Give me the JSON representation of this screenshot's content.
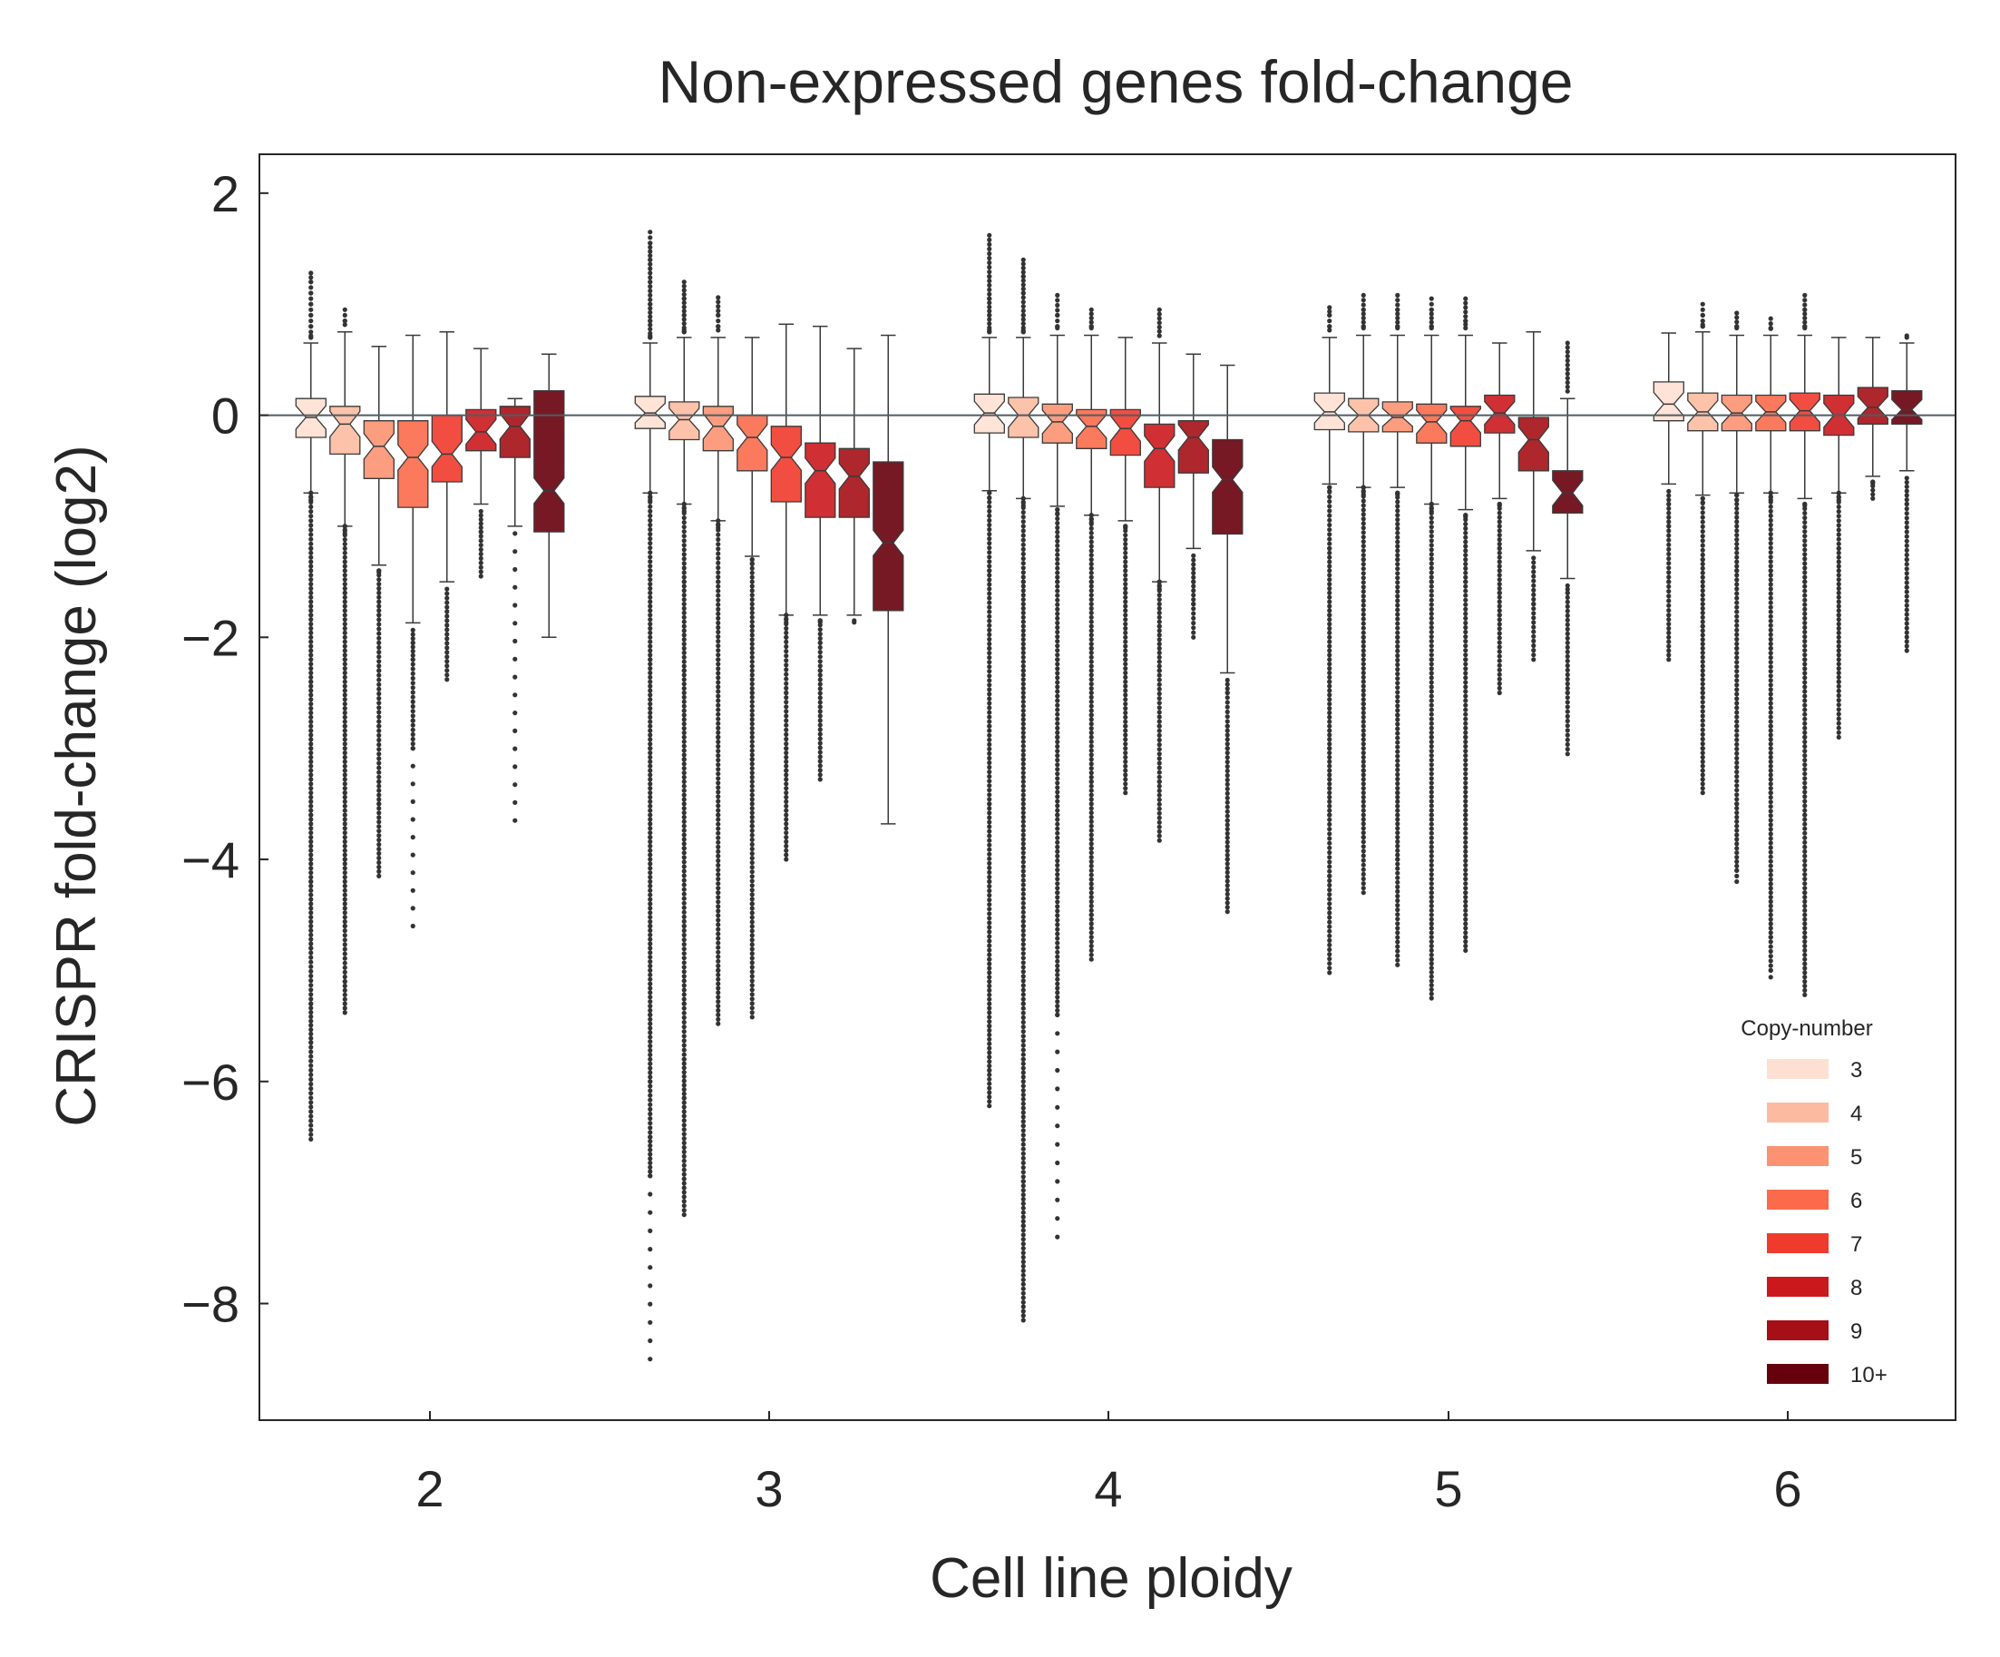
{
  "chart_data": {
    "type": "box",
    "title": "Non-expressed genes fold-change",
    "xlabel": "Cell line ploidy",
    "ylabel": "CRISPR fold-change (log2)",
    "ylim": [
      -9.05,
      2.35
    ],
    "yticks": [
      2,
      0,
      -2,
      -4,
      -6,
      -8
    ],
    "ytick_labels": [
      "2",
      "0",
      "−2",
      "−4",
      "−6",
      "−8"
    ],
    "categories": [
      "2",
      "3",
      "4",
      "5",
      "6"
    ],
    "reference_line": 0,
    "legend": {
      "title": "Copy-number",
      "position": "bottom-right",
      "entries": [
        "3",
        "4",
        "5",
        "6",
        "7",
        "8",
        "9",
        "10+"
      ]
    },
    "series": [
      {
        "name": "3",
        "color": "#fee0d2",
        "boxes": [
          {
            "ploidy": "2",
            "q1": -0.2,
            "median": -0.02,
            "q3": 0.15,
            "whisker_low": -0.7,
            "whisker_high": 0.65,
            "outliers_high": [
              0.7,
              0.8,
              0.9,
              1.0,
              1.1,
              1.2,
              1.28
            ],
            "outliers_low": [
              -0.7,
              -1.2,
              -1.8,
              -2.4,
              -3.0,
              -3.6,
              -4.2,
              -4.8,
              -5.3,
              -5.65,
              -6.52
            ]
          },
          {
            "ploidy": "3",
            "q1": -0.12,
            "median": 0.02,
            "q3": 0.17,
            "whisker_low": -0.7,
            "whisker_high": 0.65,
            "outliers_high": [
              0.7,
              0.85,
              1.0,
              1.2,
              1.4,
              1.55,
              1.65
            ],
            "outliers_low": [
              -0.7,
              -1.4,
              -2.2,
              -3.0,
              -3.8,
              -4.6,
              -5.4,
              -6.0,
              -6.5,
              -6.85,
              -8.5
            ]
          },
          {
            "ploidy": "4",
            "q1": -0.16,
            "median": 0.02,
            "q3": 0.19,
            "whisker_low": -0.68,
            "whisker_high": 0.7,
            "outliers_high": [
              0.75,
              0.9,
              1.05,
              1.25,
              1.62
            ],
            "outliers_low": [
              -0.7,
              -1.4,
              -2.1,
              -2.8,
              -3.5,
              -4.2,
              -4.9,
              -5.5,
              -5.9,
              -6.22
            ]
          },
          {
            "ploidy": "5",
            "q1": -0.13,
            "median": 0.03,
            "q3": 0.2,
            "whisker_low": -0.62,
            "whisker_high": 0.7,
            "outliers_high": [
              0.8,
              0.9,
              0.97
            ],
            "outliers_low": [
              -0.65,
              -1.2,
              -1.8,
              -2.4,
              -3.0,
              -3.6,
              -4.15,
              -5.02
            ]
          },
          {
            "ploidy": "6",
            "q1": -0.05,
            "median": 0.1,
            "q3": 0.3,
            "whisker_low": -0.62,
            "whisker_high": 0.74,
            "outliers_high": [],
            "outliers_low": [
              -0.8,
              -1.0,
              -1.5,
              -1.8,
              -2.2
            ]
          }
        ]
      },
      {
        "name": "4",
        "color": "#fcbba1",
        "boxes": [
          {
            "ploidy": "2",
            "q1": -0.35,
            "median": -0.08,
            "q3": 0.08,
            "whisker_low": -1.0,
            "whisker_high": 0.75,
            "outliers_high": [
              0.85,
              0.95
            ],
            "outliers_low": [
              -1.0,
              -1.6,
              -2.2,
              -2.8,
              -3.4,
              -4.0,
              -4.6,
              -5.1,
              -5.38
            ]
          },
          {
            "ploidy": "3",
            "q1": -0.22,
            "median": -0.04,
            "q3": 0.12,
            "whisker_low": -0.8,
            "whisker_high": 0.7,
            "outliers_high": [
              0.75,
              0.9,
              1.05,
              1.2
            ],
            "outliers_low": [
              -0.8,
              -1.5,
              -2.3,
              -3.1,
              -3.9,
              -4.6,
              -5.3,
              -5.8,
              -6.15,
              -7.2
            ]
          },
          {
            "ploidy": "4",
            "q1": -0.2,
            "median": 0.0,
            "q3": 0.16,
            "whisker_low": -0.75,
            "whisker_high": 0.7,
            "outliers_high": [
              0.75,
              0.9,
              1.1,
              1.25,
              1.4
            ],
            "outliers_low": [
              -0.75,
              -1.5,
              -2.3,
              -3.1,
              -3.9,
              -4.6,
              -5.3,
              -5.8,
              -6.4,
              -6.9,
              -7.3,
              -8.15
            ]
          },
          {
            "ploidy": "5",
            "q1": -0.15,
            "median": 0.0,
            "q3": 0.15,
            "whisker_low": -0.65,
            "whisker_high": 0.72,
            "outliers_high": [
              0.8,
              0.95,
              1.08
            ],
            "outliers_low": [
              -0.65,
              -1.3,
              -2.0,
              -2.6,
              -3.2,
              -3.8,
              -4.3
            ]
          },
          {
            "ploidy": "6",
            "q1": -0.14,
            "median": 0.03,
            "q3": 0.2,
            "whisker_low": -0.72,
            "whisker_high": 0.75,
            "outliers_high": [
              0.8,
              0.9,
              1.0
            ],
            "outliers_low": [
              -0.75,
              -1.3,
              -1.9,
              -2.5,
              -3.0,
              -3.4
            ]
          }
        ]
      },
      {
        "name": "5",
        "color": "#fc9272",
        "boxes": [
          {
            "ploidy": "2",
            "q1": -0.57,
            "median": -0.28,
            "q3": -0.05,
            "whisker_low": -1.35,
            "whisker_high": 0.62,
            "outliers_high": [],
            "outliers_low": [
              -1.4,
              -1.8,
              -2.3,
              -2.8,
              -3.3,
              -3.5,
              -4.15
            ]
          },
          {
            "ploidy": "3",
            "q1": -0.32,
            "median": -0.1,
            "q3": 0.08,
            "whisker_low": -0.95,
            "whisker_high": 0.7,
            "outliers_high": [
              0.8,
              0.9,
              1.06
            ],
            "outliers_low": [
              -0.95,
              -1.5,
              -2.2,
              -2.9,
              -3.6,
              -4.3,
              -5.0,
              -5.48
            ]
          },
          {
            "ploidy": "4",
            "q1": -0.25,
            "median": -0.06,
            "q3": 0.1,
            "whisker_low": -0.82,
            "whisker_high": 0.72,
            "outliers_high": [
              0.8,
              0.9,
              1.08
            ],
            "outliers_low": [
              -0.85,
              -1.5,
              -2.2,
              -2.9,
              -3.6,
              -4.3,
              -5.0,
              -5.4,
              -7.4
            ]
          },
          {
            "ploidy": "5",
            "q1": -0.15,
            "median": -0.02,
            "q3": 0.12,
            "whisker_low": -0.65,
            "whisker_high": 0.72,
            "outliers_high": [
              0.8,
              0.95,
              1.08
            ],
            "outliers_low": [
              -0.7,
              -1.3,
              -2.0,
              -2.7,
              -3.4,
              -4.0,
              -4.95
            ]
          },
          {
            "ploidy": "6",
            "q1": -0.14,
            "median": 0.02,
            "q3": 0.18,
            "whisker_low": -0.7,
            "whisker_high": 0.72,
            "outliers_high": [
              0.8,
              0.92
            ],
            "outliers_low": [
              -0.72,
              -1.4,
              -2.1,
              -2.8,
              -3.5,
              -4.1,
              -4.2
            ]
          }
        ]
      },
      {
        "name": "6",
        "color": "#fb6a4a",
        "boxes": [
          {
            "ploidy": "2",
            "q1": -0.83,
            "median": -0.38,
            "q3": -0.05,
            "whisker_low": -1.87,
            "whisker_high": 0.72,
            "outliers_high": [],
            "outliers_low": [
              -2.05,
              -2.2,
              -2.75,
              -3.0,
              -4.6
            ]
          },
          {
            "ploidy": "3",
            "q1": -0.5,
            "median": -0.2,
            "q3": 0.0,
            "whisker_low": -1.27,
            "whisker_high": 0.7,
            "outliers_high": [],
            "outliers_low": [
              -1.3,
              -1.9,
              -2.5,
              -3.1,
              -3.7,
              -4.4,
              -5.42
            ]
          },
          {
            "ploidy": "4",
            "q1": -0.3,
            "median": -0.1,
            "q3": 0.05,
            "whisker_low": -0.9,
            "whisker_high": 0.72,
            "outliers_high": [
              0.8,
              0.95
            ],
            "outliers_low": [
              -0.9,
              -1.5,
              -2.1,
              -2.7,
              -3.3,
              -3.9,
              -4.5,
              -4.9
            ]
          },
          {
            "ploidy": "5",
            "q1": -0.25,
            "median": -0.06,
            "q3": 0.1,
            "whisker_low": -0.8,
            "whisker_high": 0.72,
            "outliers_high": [
              0.8,
              0.95,
              1.05
            ],
            "outliers_low": [
              -0.8,
              -1.5,
              -2.2,
              -2.9,
              -3.6,
              -4.3,
              -4.9,
              -5.25
            ]
          },
          {
            "ploidy": "6",
            "q1": -0.14,
            "median": 0.03,
            "q3": 0.18,
            "whisker_low": -0.7,
            "whisker_high": 0.72,
            "outliers_high": [
              0.78,
              0.87
            ],
            "outliers_low": [
              -0.7,
              -1.4,
              -2.1,
              -2.8,
              -3.4,
              -4.1,
              -4.7,
              -5.0,
              -5.06
            ]
          }
        ]
      },
      {
        "name": "7",
        "color": "#ef3b2c",
        "boxes": [
          {
            "ploidy": "2",
            "q1": -0.6,
            "median": -0.35,
            "q3": 0.0,
            "whisker_low": -1.5,
            "whisker_high": 0.75,
            "outliers_high": [],
            "outliers_low": [
              -2.38
            ]
          },
          {
            "ploidy": "3",
            "q1": -0.78,
            "median": -0.38,
            "q3": -0.1,
            "whisker_low": -1.8,
            "whisker_high": 0.82,
            "outliers_high": [],
            "outliers_low": [
              -1.8,
              -2.0,
              -2.5,
              -3.0,
              -3.2,
              -4.0
            ]
          },
          {
            "ploidy": "4",
            "q1": -0.36,
            "median": -0.12,
            "q3": 0.05,
            "whisker_low": -0.95,
            "whisker_high": 0.7,
            "outliers_high": [],
            "outliers_low": [
              -1.0,
              -1.6,
              -2.2,
              -2.8,
              -3.4
            ]
          },
          {
            "ploidy": "5",
            "q1": -0.28,
            "median": -0.05,
            "q3": 0.08,
            "whisker_low": -0.85,
            "whisker_high": 0.72,
            "outliers_high": [
              0.85,
              1.05
            ],
            "outliers_low": [
              -0.9,
              -1.5,
              -2.2,
              -2.9,
              -3.6,
              -4.3,
              -4.7,
              -4.82
            ]
          },
          {
            "ploidy": "6",
            "q1": -0.14,
            "median": 0.04,
            "q3": 0.2,
            "whisker_low": -0.75,
            "whisker_high": 0.72,
            "outliers_high": [
              0.8,
              0.95,
              1.08
            ],
            "outliers_low": [
              -0.8,
              -1.5,
              -2.2,
              -2.9,
              -3.6,
              -4.3,
              -4.7,
              -5.22
            ]
          }
        ]
      },
      {
        "name": "8",
        "color": "#cb181d",
        "boxes": [
          {
            "ploidy": "2",
            "q1": -0.32,
            "median": -0.15,
            "q3": 0.05,
            "whisker_low": -0.8,
            "whisker_high": 0.6,
            "outliers_high": [],
            "outliers_low": [
              -1.05,
              -1.45
            ]
          },
          {
            "ploidy": "3",
            "q1": -0.92,
            "median": -0.5,
            "q3": -0.25,
            "whisker_low": -1.8,
            "whisker_high": 0.8,
            "outliers_high": [],
            "outliers_low": [
              -1.85,
              -2.05,
              -2.3,
              -3.28
            ]
          },
          {
            "ploidy": "4",
            "q1": -0.65,
            "median": -0.3,
            "q3": -0.08,
            "whisker_low": -1.5,
            "whisker_high": 0.65,
            "outliers_high": [
              0.95
            ],
            "outliers_low": [
              -1.5,
              -1.9,
              -2.3,
              -2.8,
              -3.3,
              -3.83
            ]
          },
          {
            "ploidy": "5",
            "q1": -0.16,
            "median": 0.02,
            "q3": 0.18,
            "whisker_low": -0.75,
            "whisker_high": 0.65,
            "outliers_high": [],
            "outliers_low": [
              -0.8,
              -1.2,
              -1.6,
              -1.8,
              -2.5
            ]
          },
          {
            "ploidy": "6",
            "q1": -0.18,
            "median": 0.0,
            "q3": 0.18,
            "whisker_low": -0.7,
            "whisker_high": 0.7,
            "outliers_high": [],
            "outliers_low": [
              -0.7,
              -1.2,
              -1.8,
              -2.4,
              -2.9
            ]
          }
        ]
      },
      {
        "name": "9",
        "color": "#a50f15",
        "boxes": [
          {
            "ploidy": "2",
            "q1": -0.38,
            "median": -0.1,
            "q3": 0.08,
            "whisker_low": -1.0,
            "whisker_high": 0.15,
            "outliers_high": [],
            "outliers_low": [
              -3.65
            ]
          },
          {
            "ploidy": "3",
            "q1": -0.92,
            "median": -0.55,
            "q3": -0.3,
            "whisker_low": -1.8,
            "whisker_high": 0.6,
            "outliers_high": [],
            "outliers_low": [
              -1.85
            ]
          },
          {
            "ploidy": "4",
            "q1": -0.52,
            "median": -0.2,
            "q3": -0.05,
            "whisker_low": -1.2,
            "whisker_high": 0.55,
            "outliers_high": [],
            "outliers_low": [
              -1.5,
              -1.7,
              -2.0
            ]
          },
          {
            "ploidy": "5",
            "q1": -0.5,
            "median": -0.22,
            "q3": -0.02,
            "whisker_low": -1.22,
            "whisker_high": 0.75,
            "outliers_high": [],
            "outliers_low": [
              -1.7,
              -2.2
            ]
          },
          {
            "ploidy": "6",
            "q1": -0.08,
            "median": 0.07,
            "q3": 0.25,
            "whisker_low": -0.55,
            "whisker_high": 0.7,
            "outliers_high": [],
            "outliers_low": [
              -0.6,
              -0.75
            ]
          }
        ]
      },
      {
        "name": "10+",
        "color": "#67000d",
        "boxes": [
          {
            "ploidy": "2",
            "q1": -1.05,
            "median": -0.68,
            "q3": 0.22,
            "whisker_low": -2.0,
            "whisker_high": 0.55,
            "outliers_high": [],
            "outliers_low": []
          },
          {
            "ploidy": "3",
            "q1": -1.76,
            "median": -1.15,
            "q3": -0.42,
            "whisker_low": -3.68,
            "whisker_high": 0.72,
            "outliers_high": [],
            "outliers_low": []
          },
          {
            "ploidy": "4",
            "q1": -1.07,
            "median": -0.58,
            "q3": -0.22,
            "whisker_low": -2.32,
            "whisker_high": 0.45,
            "outliers_high": [],
            "outliers_low": [
              -2.5,
              -2.8,
              -3.0,
              -3.65,
              -4.0,
              -4.47
            ]
          },
          {
            "ploidy": "5",
            "q1": -0.88,
            "median": -0.7,
            "q3": -0.5,
            "whisker_low": -1.47,
            "whisker_high": 0.15,
            "outliers_high": [
              0.65
            ],
            "outliers_low": [
              -1.6,
              -2.5,
              -3.05
            ]
          },
          {
            "ploidy": "6",
            "q1": -0.08,
            "median": 0.05,
            "q3": 0.22,
            "whisker_low": -0.5,
            "whisker_high": 0.65,
            "outliers_high": [
              0.7
            ],
            "outliers_low": [
              -0.8,
              -1.3,
              -1.55,
              -2.12
            ]
          }
        ]
      }
    ]
  }
}
